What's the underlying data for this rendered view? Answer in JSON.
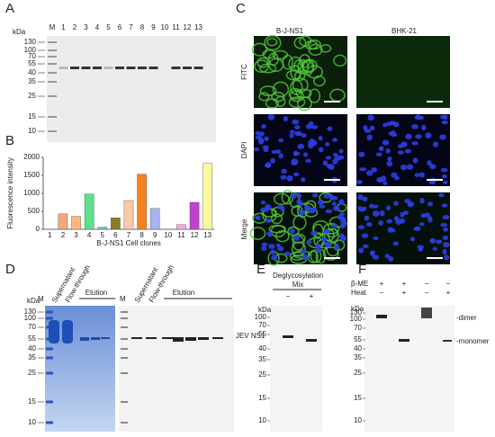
{
  "panel_a": {
    "label": "A",
    "kda": "kDa",
    "lanes": [
      "M",
      "1",
      "2",
      "3",
      "4",
      "5",
      "6",
      "7",
      "8",
      "9",
      "10",
      "11",
      "12",
      "13"
    ],
    "markers": [
      "130",
      "100",
      "70",
      "55",
      "40",
      "35",
      "25",
      "15",
      "10"
    ]
  },
  "chart_data": {
    "type": "bar",
    "label": "B",
    "y_label": "Fluorescence intensity",
    "x_label": "B-J-NS1 Cell clones",
    "categories": [
      "1",
      "2",
      "3",
      "4",
      "5",
      "6",
      "7",
      "8",
      "9",
      "10",
      "11",
      "12",
      "13"
    ],
    "values": [
      0,
      430,
      360,
      980,
      60,
      320,
      800,
      1530,
      580,
      0,
      130,
      750,
      1830
    ],
    "colors": [
      "#f4a582",
      "#f4a582",
      "#fdb97d",
      "#5fe08a",
      "#6ec5d6",
      "#8b7a2b",
      "#f9c9a7",
      "#f58220",
      "#a9b1ee",
      "#a9b1ee",
      "#f2a9e8",
      "#c040d0",
      "#fbf8a0"
    ],
    "ylim": [
      0,
      2000
    ],
    "yticks": [
      0,
      500,
      1000,
      1500,
      2000
    ]
  },
  "panel_c": {
    "label": "C",
    "columns": [
      "B-J-NS1",
      "BHK-21"
    ],
    "rows": [
      "FITC",
      "DAPI",
      "Merge"
    ]
  },
  "panel_d": {
    "label": "D",
    "kda": "kDa",
    "markers": [
      "130",
      "100",
      "70",
      "55",
      "40",
      "35",
      "25",
      "15",
      "10"
    ],
    "lane_m": "M",
    "lanes": [
      "Supernatant",
      "Flow-through"
    ],
    "elution": "Elution",
    "band_label": "JEV NS1"
  },
  "panel_e": {
    "label": "E",
    "kda": "kDa",
    "markers": [
      "100",
      "70",
      "55",
      "40",
      "35",
      "25",
      "15",
      "10"
    ],
    "treatment": "Deglycosylation",
    "mix": "Mix",
    "signs": [
      "−",
      "+"
    ]
  },
  "panel_f": {
    "label": "F",
    "kda": "kDa",
    "markers": [
      "130",
      "100",
      "70",
      "55",
      "40",
      "35",
      "25",
      "15",
      "10"
    ],
    "rows": [
      {
        "name": "β-ME",
        "signs": [
          "+",
          "+",
          "−",
          "−"
        ]
      },
      {
        "name": "Heat",
        "signs": [
          "−",
          "+",
          "−",
          "+"
        ]
      }
    ],
    "dimer": "-dimer",
    "monomer": "-monomer"
  }
}
